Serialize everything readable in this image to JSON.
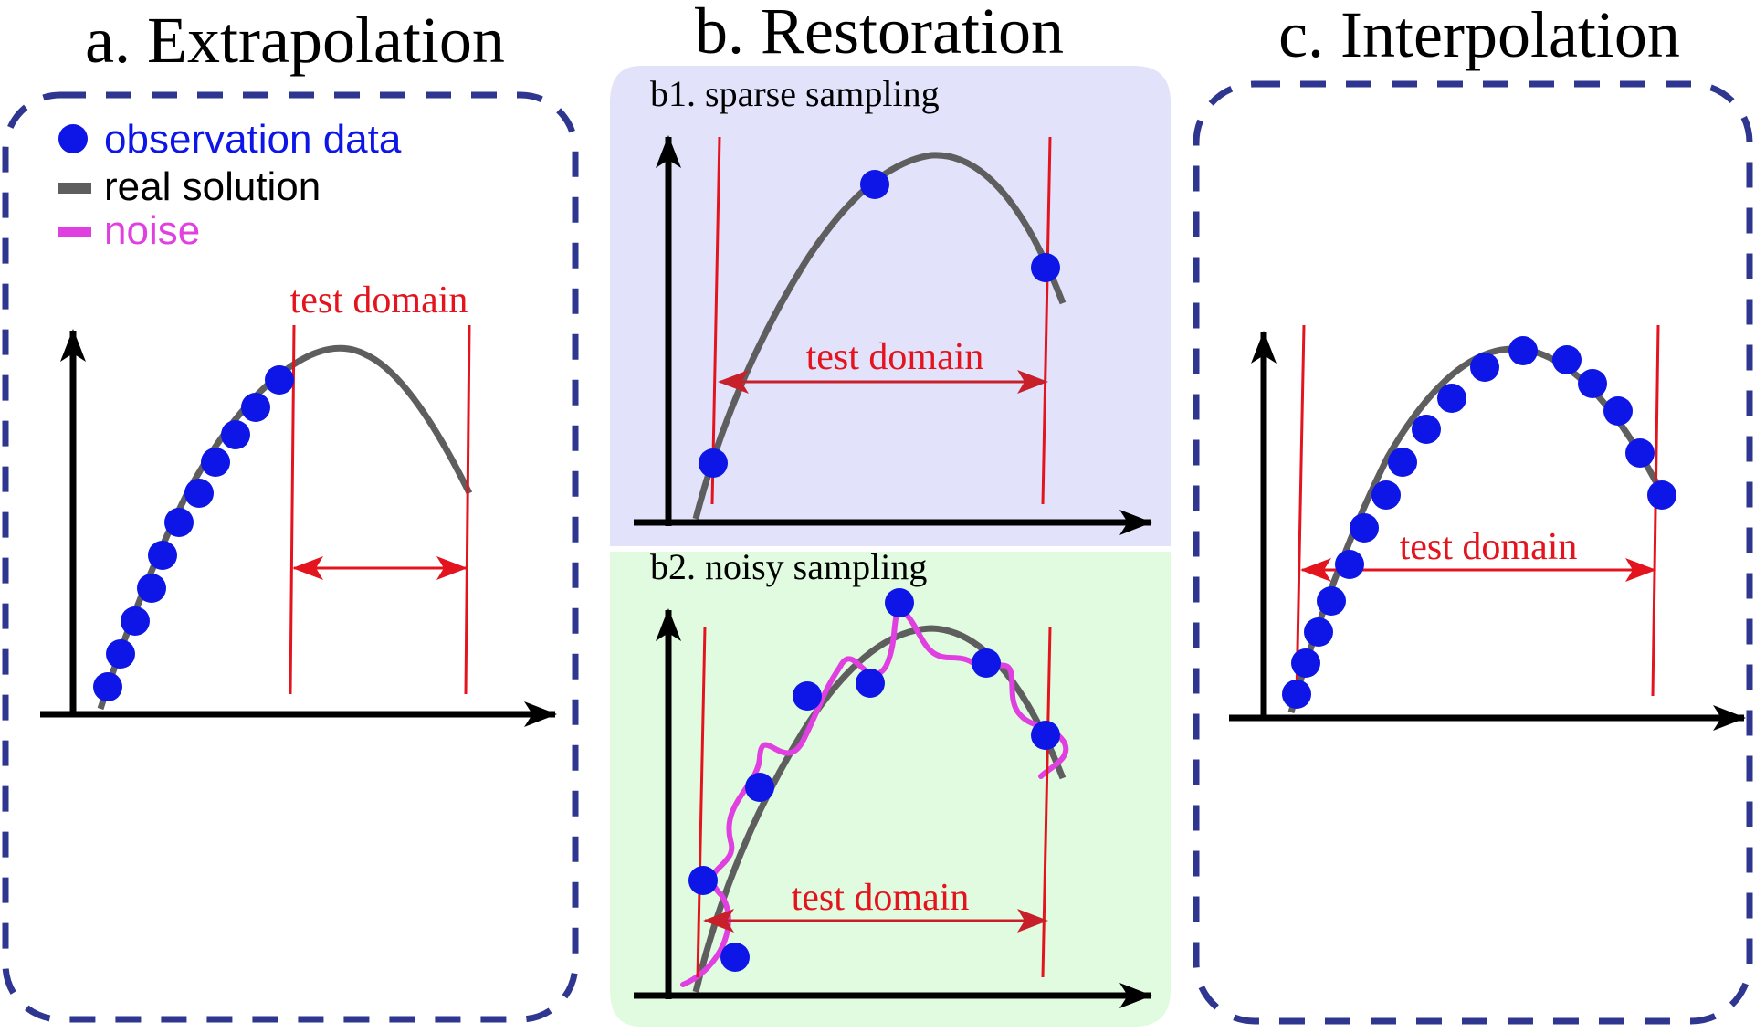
{
  "titles": {
    "a": "a. Extrapolation",
    "b": "b. Restoration",
    "c": "c. Interpolation"
  },
  "subtitles": {
    "b1": "b1. sparse sampling",
    "b2": "b2. noisy sampling"
  },
  "legend": {
    "observation": "observation data",
    "real": "real solution",
    "noise": "noise"
  },
  "test_domain_label": "test domain",
  "colors": {
    "observation": "#0d16e6",
    "real_solution": "#5e5e5e",
    "noise": "#e040e0",
    "test_domain": "#e3141d",
    "frame": "#2e3690",
    "b1_background": "#e2e2fb",
    "b2_background": "#e0fbe0"
  },
  "icons": {
    "observation": "filled-circle",
    "real_solution": "gray-dash",
    "noise": "magenta-dash"
  }
}
